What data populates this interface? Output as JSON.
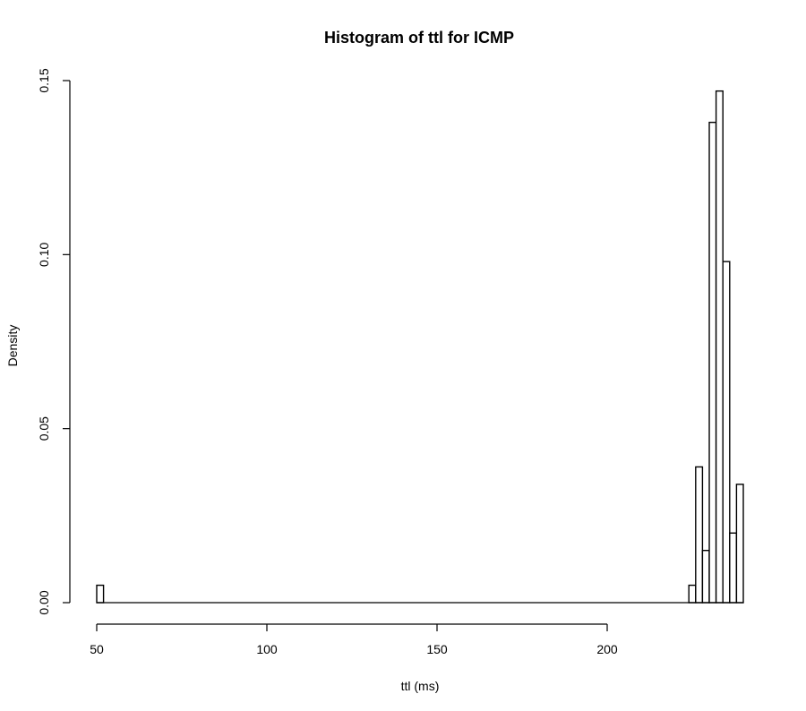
{
  "chart_data": {
    "type": "bar",
    "title": "Histogram of  ttl  for ICMP",
    "xlabel": "ttl  (ms)",
    "ylabel": "Density",
    "xlim": [
      50,
      240
    ],
    "ylim": [
      0,
      0.15
    ],
    "x_ticks": [
      50,
      100,
      150,
      200
    ],
    "x_tick_labels": [
      "50",
      "100",
      "150",
      "200"
    ],
    "y_ticks": [
      0.0,
      0.05,
      0.1,
      0.15
    ],
    "y_tick_labels": [
      "0.00",
      "0.05",
      "0.10",
      "0.15"
    ],
    "bin_width": 2,
    "bins": [
      {
        "x0": 50,
        "x1": 52,
        "density": 0.005
      },
      {
        "x0": 224,
        "x1": 226,
        "density": 0.005
      },
      {
        "x0": 226,
        "x1": 228,
        "density": 0.039
      },
      {
        "x0": 228,
        "x1": 230,
        "density": 0.015
      },
      {
        "x0": 230,
        "x1": 232,
        "density": 0.138
      },
      {
        "x0": 232,
        "x1": 234,
        "density": 0.147
      },
      {
        "x0": 234,
        "x1": 236,
        "density": 0.098
      },
      {
        "x0": 236,
        "x1": 238,
        "density": 0.02
      },
      {
        "x0": 238,
        "x1": 240,
        "density": 0.034
      }
    ],
    "colors": {
      "bar_fill": "#ffffff",
      "bar_stroke": "#000000"
    }
  }
}
